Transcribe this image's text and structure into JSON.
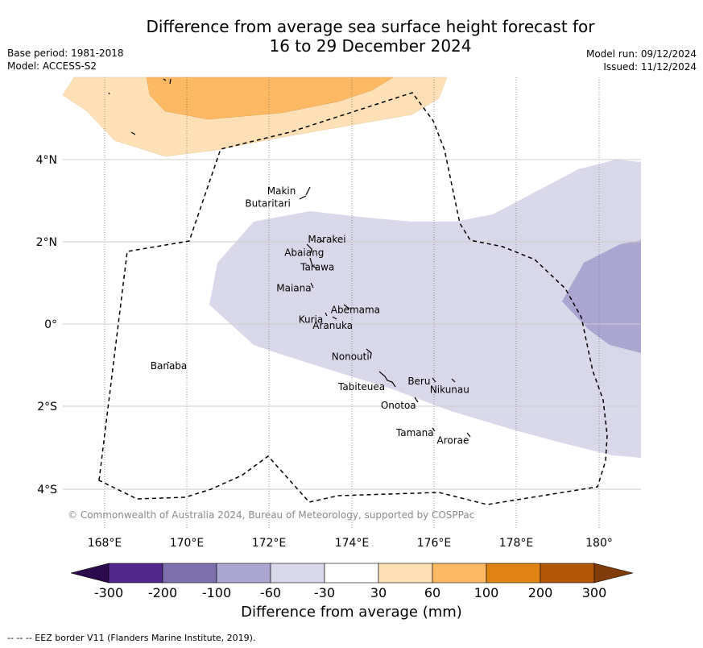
{
  "title_line1": "Difference from average sea surface height forecast for",
  "title_line2": "16 to 29 December 2024",
  "base_period": "Base period: 1981-2018",
  "model": "Model: ACCESS-S2",
  "model_run": "Model run: 09/12/2024",
  "issued": "Issued: 11/12/2024",
  "copyright": "© Commonwealth of Australia 2024, Bureau of Meteorology, supported by COSPPac",
  "lon_ticks": [
    "168°E",
    "170°E",
    "172°E",
    "174°E",
    "176°E",
    "178°E",
    "180°"
  ],
  "lat_ticks": [
    "4°N",
    "2°N",
    "0°",
    "2°S",
    "4°S"
  ],
  "places": [
    {
      "name": "Makin",
      "lon": 172.28,
      "lat": 3.22
    },
    {
      "name": "Butaritari",
      "lon": 171.95,
      "lat": 2.92
    },
    {
      "name": "Marakei",
      "lon": 173.38,
      "lat": 2.05
    },
    {
      "name": "Abaiang",
      "lon": 172.83,
      "lat": 1.73
    },
    {
      "name": "Tarawa",
      "lon": 173.15,
      "lat": 1.38
    },
    {
      "name": "Maiana",
      "lon": 172.58,
      "lat": 0.87
    },
    {
      "name": "Abemama",
      "lon": 174.07,
      "lat": 0.34
    },
    {
      "name": "Kuria",
      "lon": 172.99,
      "lat": 0.11
    },
    {
      "name": "Aranuka",
      "lon": 173.52,
      "lat": -0.04
    },
    {
      "name": "Nonouti",
      "lon": 173.95,
      "lat": -0.79
    },
    {
      "name": "Banaba",
      "lon": 169.55,
      "lat": -1.02
    },
    {
      "name": "Beru",
      "lon": 175.61,
      "lat": -1.39
    },
    {
      "name": "Nikunau",
      "lon": 176.35,
      "lat": -1.59
    },
    {
      "name": "Tabiteuea",
      "lon": 174.22,
      "lat": -1.52
    },
    {
      "name": "Onotoa",
      "lon": 175.11,
      "lat": -1.97
    },
    {
      "name": "Tamana",
      "lon": 175.51,
      "lat": -2.64
    },
    {
      "name": "Arorae",
      "lon": 176.43,
      "lat": -2.82
    }
  ],
  "colorbar": {
    "label": "Difference from average (mm)",
    "tick_labels": [
      "-300",
      "-200",
      "-100",
      "-60",
      "-30",
      "30",
      "60",
      "100",
      "200",
      "300"
    ],
    "colors": [
      "#2d0a4e",
      "#54278f",
      "#7d6fab",
      "#aba6cf",
      "#d8d8ea",
      "#ffffff",
      "#fee0b6",
      "#fdb863",
      "#e08214",
      "#b35806",
      "#7f3b08"
    ]
  },
  "footnote": "--  --  -- EEZ border V11 (Flanders Marine Institute, 2019)."
}
